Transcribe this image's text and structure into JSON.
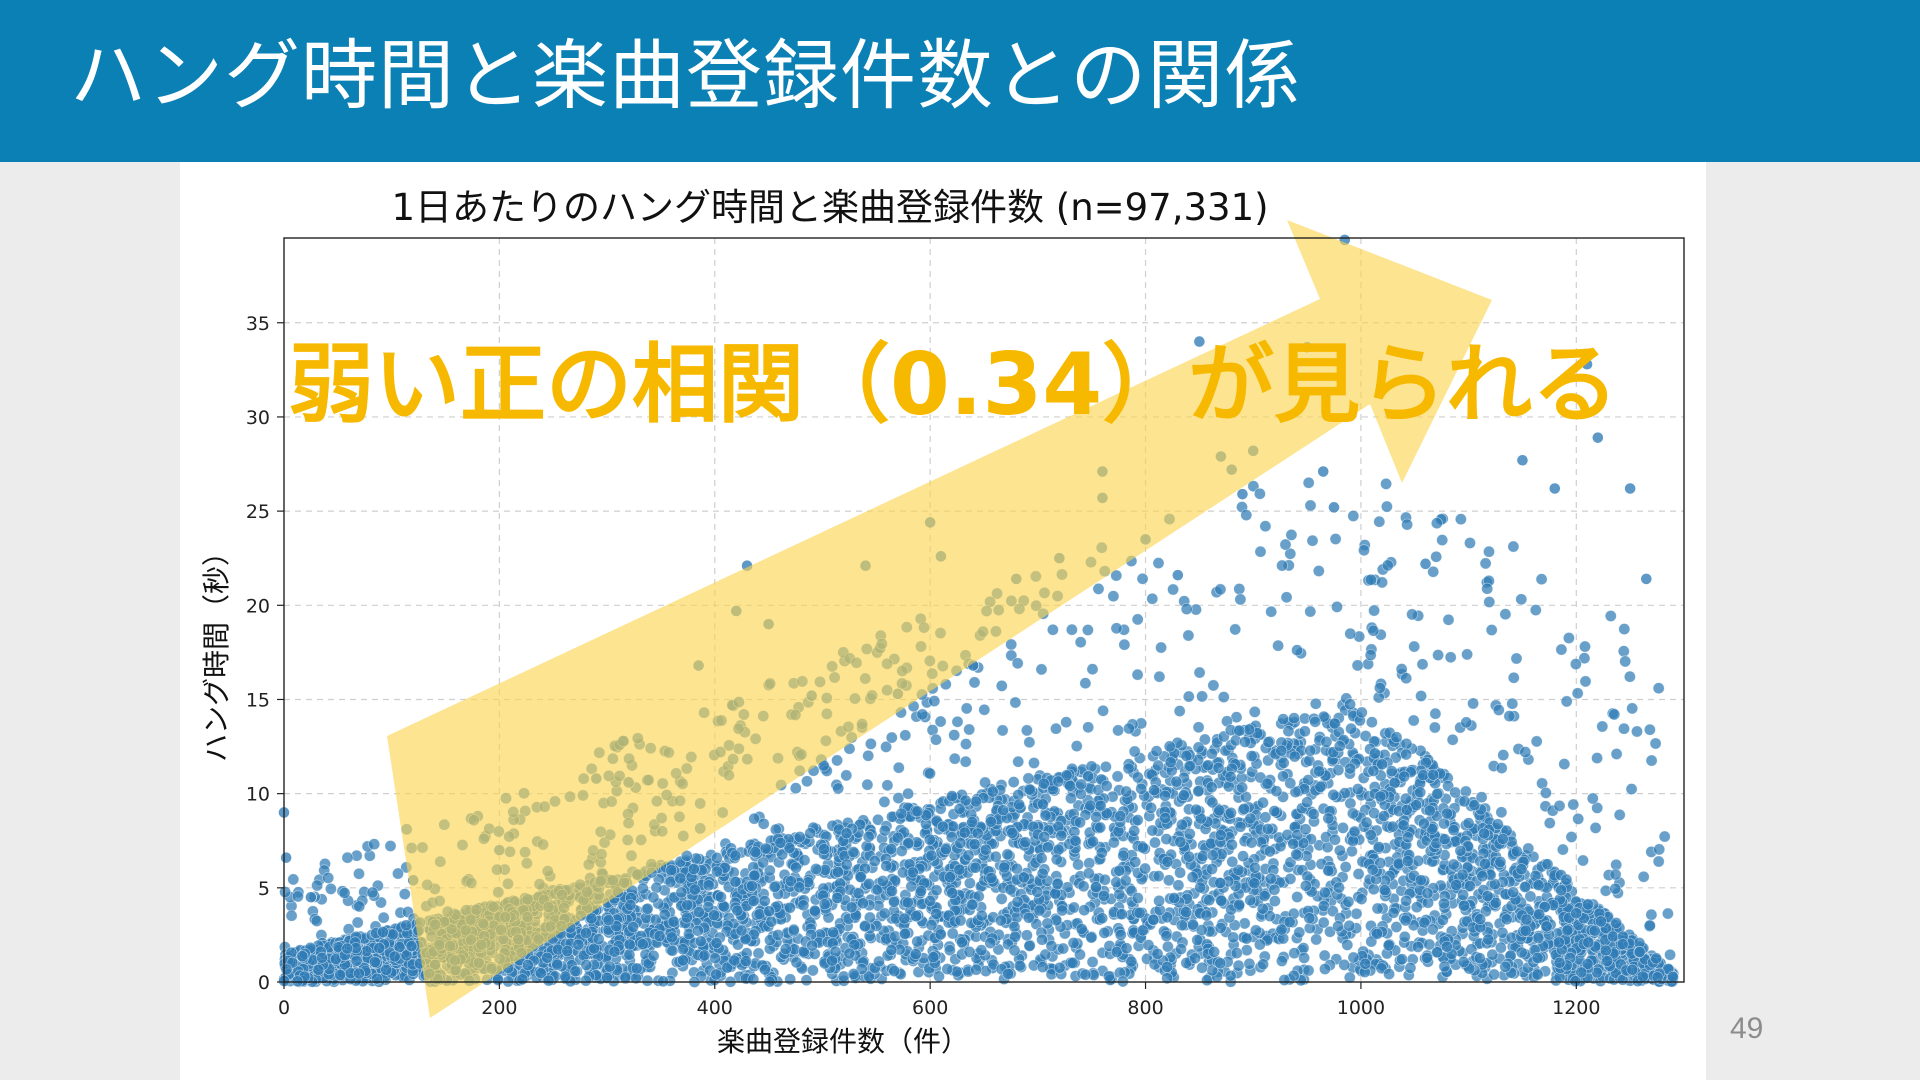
{
  "slide": {
    "title": "ハング時間と楽曲登録件数との関係",
    "page_number": "49"
  },
  "colors": {
    "header_bg": "#0b80b4",
    "point": "#2f7bb6",
    "arrow": "#fcd34d",
    "annotation": "#f7b900"
  },
  "annotation": {
    "text": "弱い正の相関（0.34）が見られる"
  },
  "chart_data": {
    "type": "scatter",
    "title": "1日あたりのハング時間と楽曲登録件数 (n=97,331)",
    "xlabel": "楽曲登録件数（件）",
    "ylabel": "ハング時間（秒）",
    "xlim": [
      0,
      1300
    ],
    "ylim": [
      0,
      39.5
    ],
    "xticks": [
      0,
      200,
      400,
      600,
      800,
      1000,
      1200
    ],
    "yticks": [
      0,
      5,
      10,
      15,
      20,
      25,
      30,
      35
    ],
    "grid": true,
    "n": 97331,
    "correlation": 0.34,
    "outliers": [
      {
        "x": 0,
        "y": 9.0
      },
      {
        "x": 2,
        "y": 6.6
      },
      {
        "x": 25,
        "y": 4.5
      },
      {
        "x": 120,
        "y": 5.4
      },
      {
        "x": 200,
        "y": 7.0
      },
      {
        "x": 290,
        "y": 10.8
      },
      {
        "x": 320,
        "y": 10.6
      },
      {
        "x": 385,
        "y": 16.8
      },
      {
        "x": 430,
        "y": 22.1
      },
      {
        "x": 420,
        "y": 19.7
      },
      {
        "x": 450,
        "y": 19.0
      },
      {
        "x": 490,
        "y": 15.2
      },
      {
        "x": 540,
        "y": 22.1
      },
      {
        "x": 570,
        "y": 15.3
      },
      {
        "x": 600,
        "y": 24.4
      },
      {
        "x": 610,
        "y": 22.6
      },
      {
        "x": 640,
        "y": 16.8
      },
      {
        "x": 680,
        "y": 21.4
      },
      {
        "x": 720,
        "y": 22.5
      },
      {
        "x": 760,
        "y": 27.1
      },
      {
        "x": 760,
        "y": 25.7
      },
      {
        "x": 800,
        "y": 23.5
      },
      {
        "x": 830,
        "y": 21.6
      },
      {
        "x": 850,
        "y": 34.0
      },
      {
        "x": 870,
        "y": 27.9
      },
      {
        "x": 880,
        "y": 27.2
      },
      {
        "x": 890,
        "y": 25.9
      },
      {
        "x": 900,
        "y": 28.2
      },
      {
        "x": 950,
        "y": 33.7
      },
      {
        "x": 965,
        "y": 27.1
      },
      {
        "x": 985,
        "y": 39.4
      },
      {
        "x": 975,
        "y": 25.2
      },
      {
        "x": 1060,
        "y": 22.2
      },
      {
        "x": 1150,
        "y": 27.7
      },
      {
        "x": 1180,
        "y": 26.2
      },
      {
        "x": 1250,
        "y": 26.2
      },
      {
        "x": 1210,
        "y": 32.8
      },
      {
        "x": 1220,
        "y": 28.9
      },
      {
        "x": 1265,
        "y": 21.4
      }
    ]
  }
}
